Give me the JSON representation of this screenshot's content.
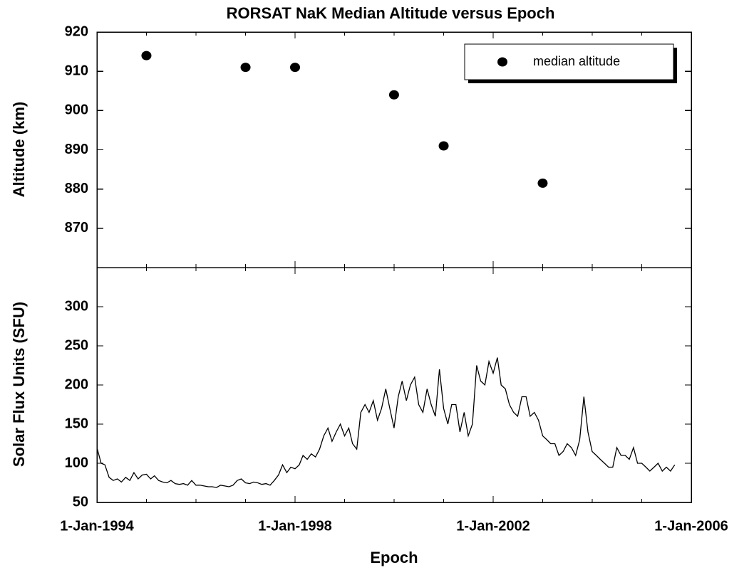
{
  "chart_data": [
    {
      "type": "scatter",
      "title": "RORSAT NaK Median Altitude versus Epoch",
      "ylabel": "Altitude (km)",
      "series": [
        {
          "name": "median altitude",
          "color": "#000000",
          "x": [
            "1995-01-01",
            "1997-01-01",
            "1998-01-01",
            "2000-01-01",
            "2001-01-01",
            "2003-01-01"
          ],
          "values": [
            914,
            911,
            911,
            904,
            891,
            881.5
          ]
        }
      ],
      "legend": "upper right",
      "xlim": [
        "1994-01-01",
        "2006-01-01"
      ],
      "ylim": [
        860,
        920
      ],
      "yticks": [
        870,
        880,
        890,
        900,
        910,
        920
      ]
    },
    {
      "type": "line",
      "xlabel": "Epoch",
      "ylabel": "Solar Flux Units (SFU)",
      "color": "#000000",
      "x": [
        "1994-01-01",
        "1994-02-01",
        "1994-03-01",
        "1994-04-01",
        "1994-05-01",
        "1994-06-01",
        "1994-07-01",
        "1994-08-01",
        "1994-09-01",
        "1994-10-01",
        "1994-11-01",
        "1994-12-01",
        "1995-01-01",
        "1995-02-01",
        "1995-03-01",
        "1995-04-01",
        "1995-05-01",
        "1995-06-01",
        "1995-07-01",
        "1995-08-01",
        "1995-09-01",
        "1995-10-01",
        "1995-11-01",
        "1995-12-01",
        "1996-01-01",
        "1996-02-01",
        "1996-03-01",
        "1996-04-01",
        "1996-05-01",
        "1996-06-01",
        "1996-07-01",
        "1996-08-01",
        "1996-09-01",
        "1996-10-01",
        "1996-11-01",
        "1996-12-01",
        "1997-01-01",
        "1997-02-01",
        "1997-03-01",
        "1997-04-01",
        "1997-05-01",
        "1997-06-01",
        "1997-07-01",
        "1997-08-01",
        "1997-09-01",
        "1997-10-01",
        "1997-11-01",
        "1997-12-01",
        "1998-01-01",
        "1998-02-01",
        "1998-03-01",
        "1998-04-01",
        "1998-05-01",
        "1998-06-01",
        "1998-07-01",
        "1998-08-01",
        "1998-09-01",
        "1998-10-01",
        "1998-11-01",
        "1998-12-01",
        "1999-01-01",
        "1999-02-01",
        "1999-03-01",
        "1999-04-01",
        "1999-05-01",
        "1999-06-01",
        "1999-07-01",
        "1999-08-01",
        "1999-09-01",
        "1999-10-01",
        "1999-11-01",
        "1999-12-01",
        "2000-01-01",
        "2000-02-01",
        "2000-03-01",
        "2000-04-01",
        "2000-05-01",
        "2000-06-01",
        "2000-07-01",
        "2000-08-01",
        "2000-09-01",
        "2000-10-01",
        "2000-11-01",
        "2000-12-01",
        "2001-01-01",
        "2001-02-01",
        "2001-03-01",
        "2001-04-01",
        "2001-05-01",
        "2001-06-01",
        "2001-07-01",
        "2001-08-01",
        "2001-09-01",
        "2001-10-01",
        "2001-11-01",
        "2001-12-01",
        "2002-01-01",
        "2002-02-01",
        "2002-03-01",
        "2002-04-01",
        "2002-05-01",
        "2002-06-01",
        "2002-07-01",
        "2002-08-01",
        "2002-09-01",
        "2002-10-01",
        "2002-11-01",
        "2002-12-01",
        "2003-01-01",
        "2003-02-01",
        "2003-03-01",
        "2003-04-01",
        "2003-05-01",
        "2003-06-01",
        "2003-07-01",
        "2003-08-01",
        "2003-09-01",
        "2003-10-01",
        "2003-11-01",
        "2003-12-01",
        "2004-01-01",
        "2004-02-01",
        "2004-03-01",
        "2004-04-01",
        "2004-05-01",
        "2004-06-01",
        "2004-07-01",
        "2004-08-01",
        "2004-09-01",
        "2004-10-01",
        "2004-11-01",
        "2004-12-01",
        "2005-01-01",
        "2005-02-01",
        "2005-03-01",
        "2005-04-01",
        "2005-05-01",
        "2005-06-01",
        "2005-07-01",
        "2005-08-01",
        "2005-09-01"
      ],
      "values": [
        120,
        100,
        98,
        82,
        78,
        80,
        76,
        82,
        78,
        88,
        80,
        85,
        86,
        80,
        84,
        78,
        76,
        75,
        78,
        74,
        73,
        74,
        72,
        78,
        72,
        72,
        71,
        70,
        70,
        69,
        72,
        71,
        70,
        72,
        78,
        80,
        75,
        74,
        76,
        75,
        73,
        74,
        72,
        78,
        85,
        98,
        88,
        95,
        93,
        98,
        110,
        105,
        112,
        108,
        118,
        135,
        145,
        128,
        140,
        150,
        135,
        145,
        125,
        118,
        165,
        175,
        165,
        180,
        155,
        170,
        195,
        170,
        145,
        185,
        205,
        180,
        200,
        210,
        175,
        165,
        195,
        175,
        160,
        220,
        170,
        150,
        175,
        175,
        140,
        165,
        135,
        150,
        225,
        205,
        200,
        230,
        215,
        235,
        200,
        195,
        175,
        165,
        160,
        185,
        185,
        160,
        165,
        155,
        135,
        130,
        125,
        125,
        110,
        115,
        125,
        120,
        110,
        130,
        185,
        140,
        115,
        110,
        105,
        100,
        95,
        95,
        120,
        110,
        110,
        105,
        120,
        100,
        100,
        95,
        90,
        95,
        100,
        90,
        95,
        90,
        98
      ],
      "xlim": [
        "1994-01-01",
        "2006-01-01"
      ],
      "xticks": [
        {
          "value": "1994-01-01",
          "label": "1-Jan-1994"
        },
        {
          "value": "1998-01-01",
          "label": "1-Jan-1998"
        },
        {
          "value": "2002-01-01",
          "label": "1-Jan-2002"
        },
        {
          "value": "2006-01-01",
          "label": "1-Jan-2006"
        }
      ],
      "xminorticks": [
        "1995-01-01",
        "1996-01-01",
        "1997-01-01",
        "1999-01-01",
        "2000-01-01",
        "2001-01-01",
        "2003-01-01",
        "2004-01-01",
        "2005-01-01"
      ],
      "ylim": [
        50,
        350
      ],
      "yticks": [
        50,
        100,
        150,
        200,
        250,
        300
      ]
    }
  ]
}
